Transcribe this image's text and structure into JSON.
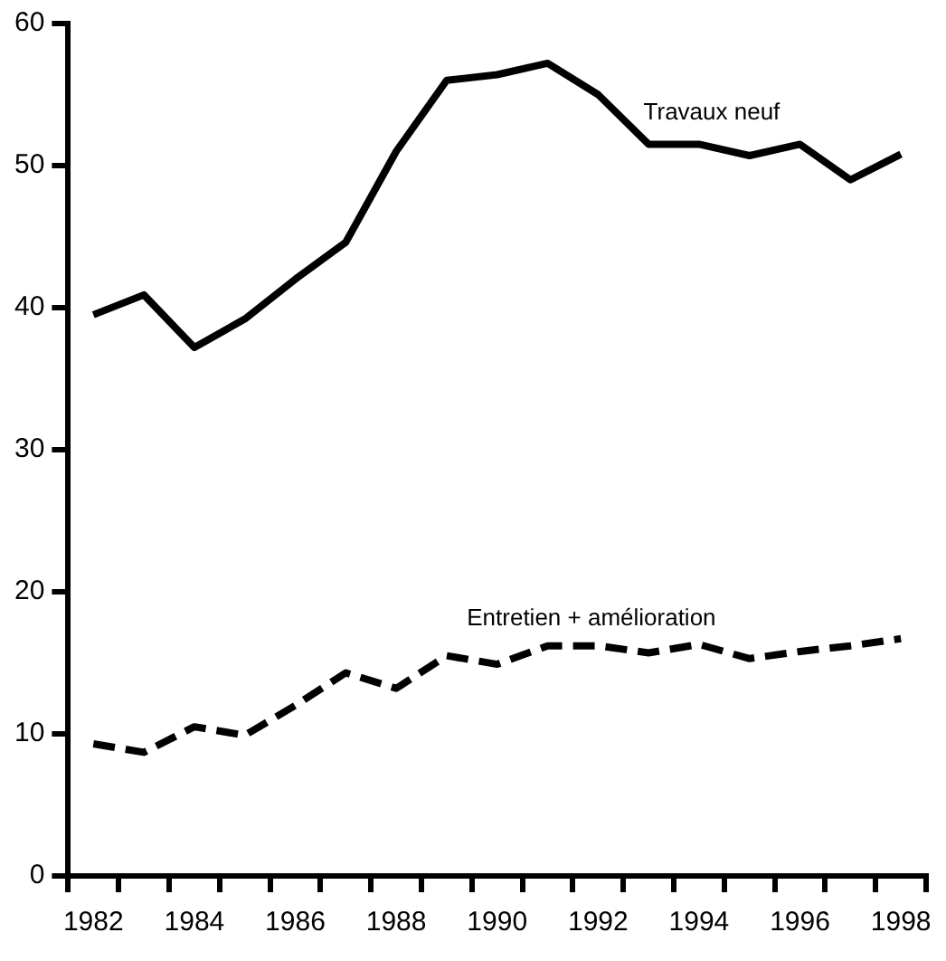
{
  "chart_data": {
    "type": "line",
    "categories": [
      "1982",
      null,
      "1984",
      null,
      "1986",
      null,
      "1988",
      null,
      "1990",
      null,
      "1992",
      null,
      "1994",
      null,
      "1996",
      null,
      "1998"
    ],
    "series": [
      {
        "name": "Travaux neuf",
        "color": "#000000",
        "line_style": "solid",
        "values": [
          39.5,
          40.9,
          37.2,
          39.2,
          42,
          44.6,
          51,
          56,
          56.4,
          57.2,
          55,
          51.5,
          51.5,
          50.7,
          51.5,
          49,
          50.8
        ]
      },
      {
        "name": "Entretien + amélioration",
        "color": "#000000",
        "line_style": "dashed",
        "values": [
          9.3,
          8.7,
          10.5,
          9.9,
          12,
          14.3,
          13.2,
          15.5,
          14.9,
          16.2,
          16.2,
          15.7,
          16.3,
          15.3,
          15.8,
          16.2,
          16.7
        ]
      }
    ],
    "ylim": [
      0,
      60
    ],
    "yticks": [
      0,
      10,
      20,
      30,
      40,
      50,
      60
    ],
    "grid": false,
    "legend": false,
    "marker": "none"
  }
}
